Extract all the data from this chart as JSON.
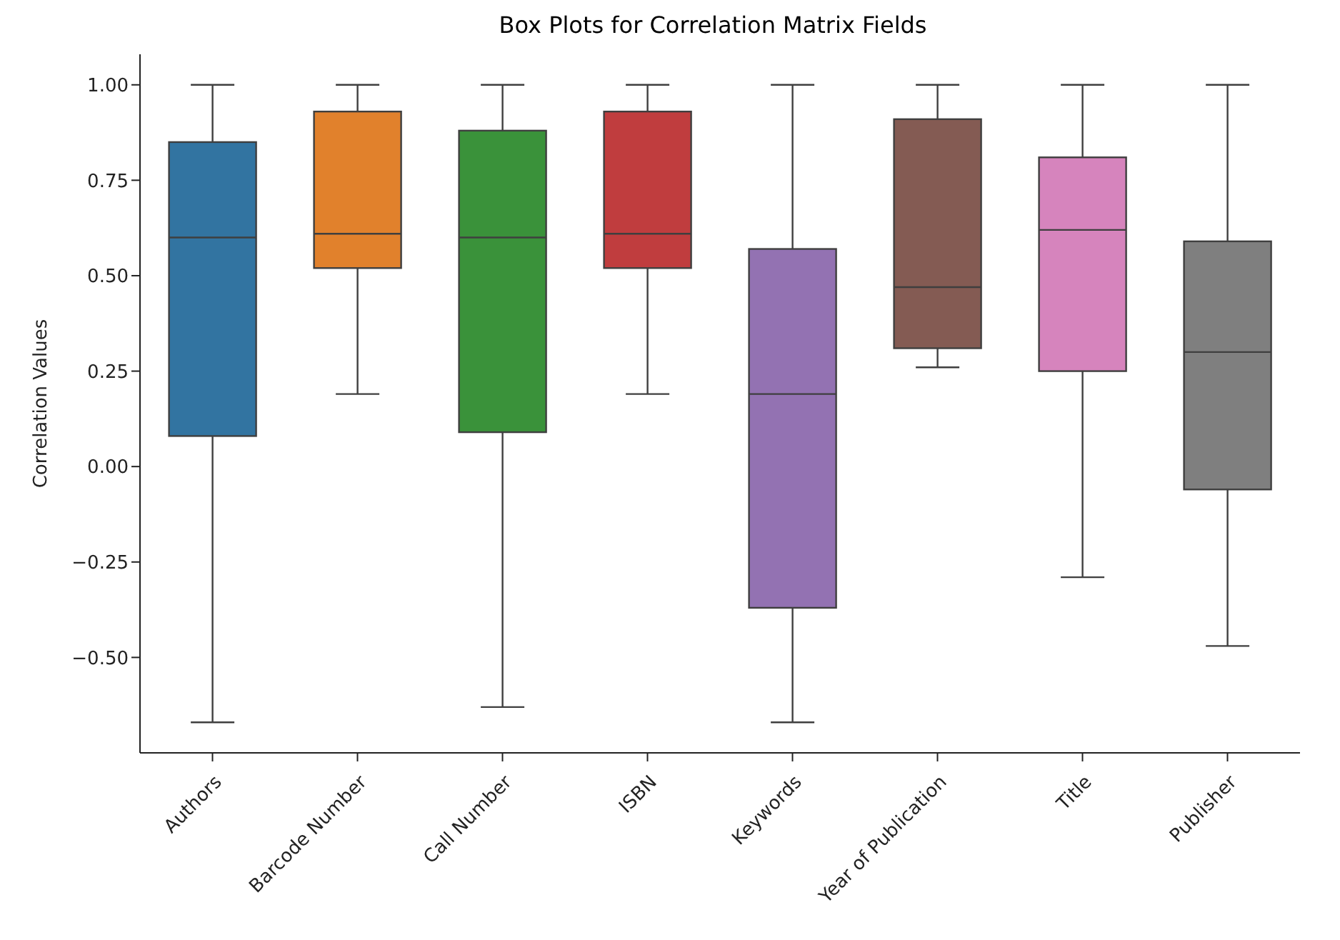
{
  "chart_data": {
    "type": "box",
    "title": "Box Plots for Correlation Matrix Fields",
    "ylabel": "Correlation Values",
    "categories": [
      "Authors",
      "Barcode Number",
      "Call Number",
      "ISBN",
      "Keywords",
      "Year of Publication",
      "Title",
      "Publisher"
    ],
    "colors": [
      "#3274a1",
      "#e1812c",
      "#3a923a",
      "#c03d3e",
      "#9372b2",
      "#845b53",
      "#d684bd",
      "#7f7f7f"
    ],
    "boxes": [
      {
        "low": -0.67,
        "q1": 0.08,
        "median": 0.6,
        "q3": 0.85,
        "high": 1.0
      },
      {
        "low": 0.19,
        "q1": 0.52,
        "median": 0.61,
        "q3": 0.93,
        "high": 1.0
      },
      {
        "low": -0.63,
        "q1": 0.09,
        "median": 0.6,
        "q3": 0.88,
        "high": 1.0
      },
      {
        "low": 0.19,
        "q1": 0.52,
        "median": 0.61,
        "q3": 0.93,
        "high": 1.0
      },
      {
        "low": -0.67,
        "q1": -0.37,
        "median": 0.19,
        "q3": 0.57,
        "high": 1.0
      },
      {
        "low": 0.26,
        "q1": 0.31,
        "median": 0.47,
        "q3": 0.91,
        "high": 1.0
      },
      {
        "low": -0.29,
        "q1": 0.25,
        "median": 0.62,
        "q3": 0.81,
        "high": 1.0
      },
      {
        "low": -0.47,
        "q1": -0.06,
        "median": 0.3,
        "q3": 0.59,
        "high": 1.0
      }
    ],
    "ylim": [
      -0.75,
      1.08
    ],
    "yticks": [
      {
        "value": -0.5,
        "label": "−0.50"
      },
      {
        "value": -0.25,
        "label": "−0.25"
      },
      {
        "value": 0,
        "label": "0.00"
      },
      {
        "value": 0.25,
        "label": "0.25"
      },
      {
        "value": 0.5,
        "label": "0.50"
      },
      {
        "value": 0.75,
        "label": "0.75"
      },
      {
        "value": 1,
        "label": "1.00"
      }
    ],
    "grid": false,
    "legend": false
  }
}
